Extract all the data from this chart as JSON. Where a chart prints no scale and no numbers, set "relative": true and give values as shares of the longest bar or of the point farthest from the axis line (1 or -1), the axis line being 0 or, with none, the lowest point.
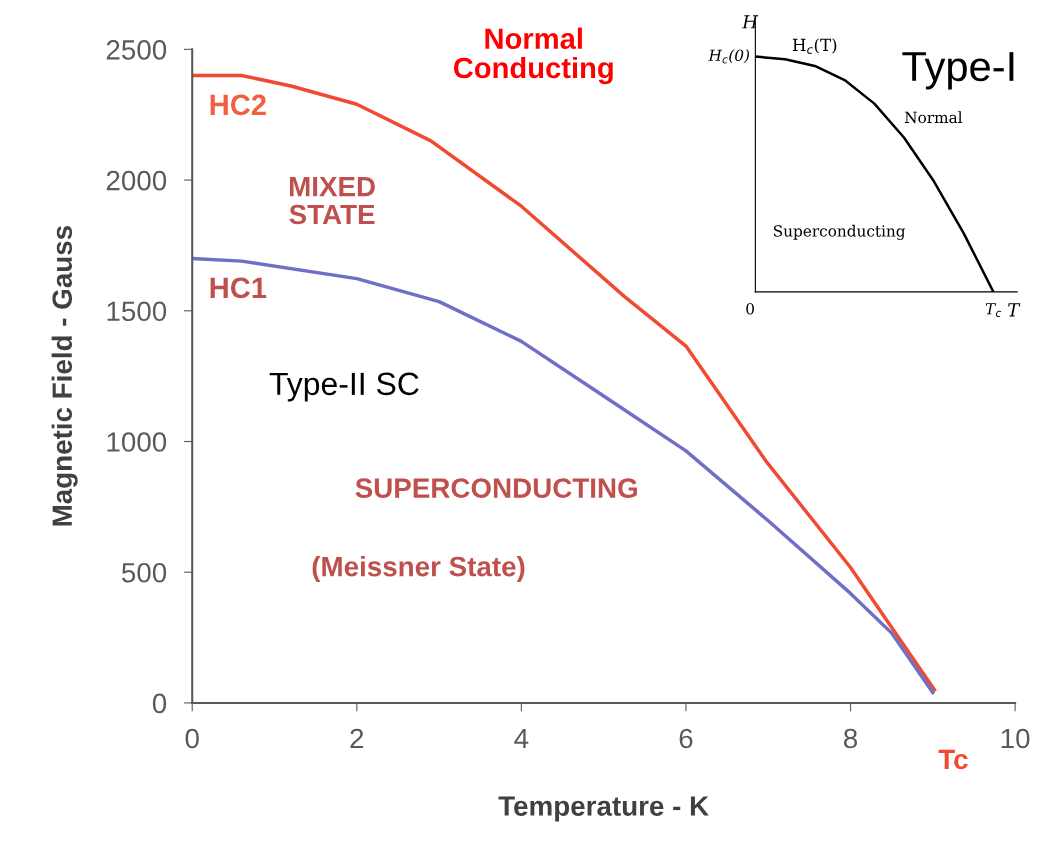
{
  "chart_data": [
    {
      "type": "line",
      "xlabel": "Temperature - K",
      "ylabel": "Magnetic Field - Gauss",
      "xlim": [
        0,
        10
      ],
      "ylim": [
        0,
        2500
      ],
      "xticks": [
        0,
        2,
        4,
        6,
        8,
        10
      ],
      "yticks": [
        0,
        500,
        1000,
        1500,
        2000,
        2500
      ],
      "grid": false,
      "legend": false,
      "marker": "none",
      "line_style": "solid",
      "series": [
        {
          "name": "HC2",
          "color": "#f04a32",
          "x": [
            0,
            0.6,
            1.2,
            2,
            2.9,
            4,
            5.25,
            6,
            6.97,
            8,
            9.02
          ],
          "values": [
            2400,
            2400,
            2360,
            2290,
            2150,
            1900,
            1555,
            1365,
            926,
            518,
            50
          ]
        },
        {
          "name": "HC1",
          "color": "#6f6fc8",
          "x": [
            0,
            0.6,
            2,
            3,
            4,
            5,
            6,
            7,
            8,
            8.5,
            9.0
          ],
          "values": [
            1700,
            1690,
            1623,
            1535,
            1383,
            1174,
            964,
            697,
            419,
            267,
            40
          ]
        }
      ],
      "annotations": [
        "Normal\nConducting",
        "MIXED\nSTATE",
        "Type-II SC",
        "SUPERCONDUCTING",
        "(Meissner State)",
        "Tc"
      ]
    },
    {
      "type": "line",
      "title": "Type-I",
      "xlabel": "T",
      "ylabel": "H",
      "relative": true,
      "categories": [
        null,
        null,
        null,
        null,
        null,
        null,
        null,
        null,
        null
      ],
      "grid": false,
      "legend": false,
      "marker": "none",
      "line_style": "solid",
      "series": [
        {
          "name": "H$_{c}$(T)",
          "color": "#000000",
          "values": [
            1,
            0.989,
            0.96,
            0.9,
            0.8,
            0.655,
            0.47,
            0.25,
            0
          ]
        }
      ],
      "annotations": [
        "H$_{c}$(0)",
        "Normal",
        "Superconducting",
        "0",
        "T$_{c}$"
      ]
    }
  ]
}
